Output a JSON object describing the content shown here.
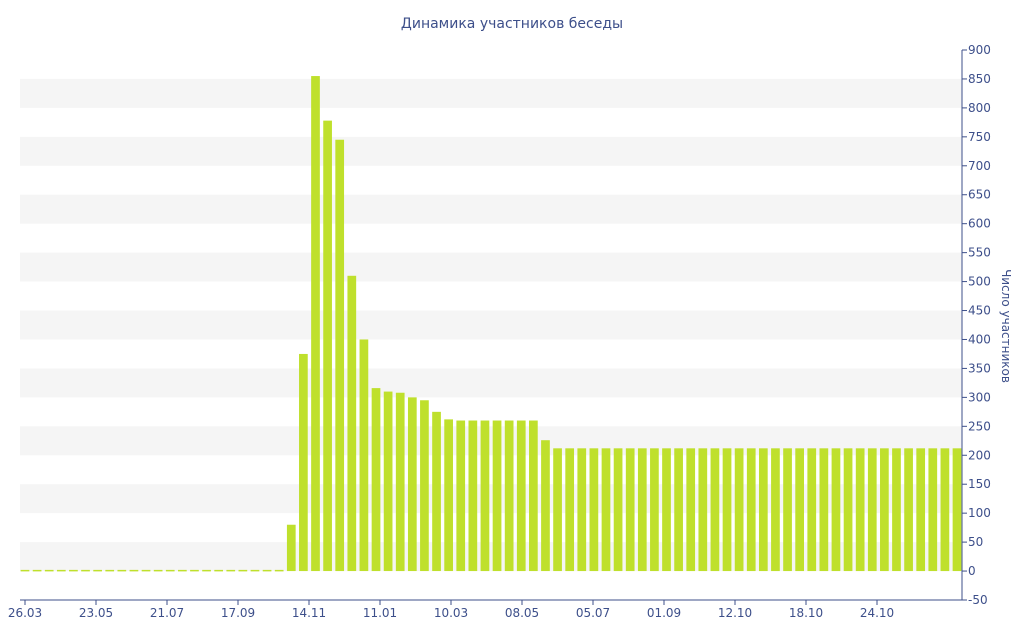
{
  "chart_data": {
    "type": "bar",
    "title": "Динамика участников беседы",
    "xlabel": "",
    "ylabel": "Число участников",
    "ylim": [
      -50,
      900
    ],
    "y_ticks": [
      -50,
      0,
      50,
      100,
      150,
      200,
      250,
      300,
      350,
      400,
      450,
      500,
      550,
      600,
      650,
      700,
      750,
      800,
      850,
      900
    ],
    "y_axis_position": "right",
    "grid": "alternating horizontal bands",
    "x_tick_labels": [
      "26.03",
      "23.05",
      "21.07",
      "17.09",
      "14.11",
      "11.01",
      "10.03",
      "08.05",
      "05.07",
      "01.09",
      "12.10",
      "18.10",
      "24.10"
    ],
    "bar_color": "#bfe02c",
    "values": [
      2,
      2,
      2,
      2,
      2,
      2,
      2,
      2,
      2,
      2,
      2,
      2,
      2,
      2,
      2,
      2,
      2,
      2,
      2,
      2,
      2,
      2,
      80,
      375,
      855,
      778,
      745,
      510,
      400,
      316,
      310,
      308,
      300,
      295,
      275,
      262,
      260,
      260,
      260,
      260,
      260,
      260,
      260,
      226,
      212,
      212,
      212,
      212,
      212,
      212,
      212,
      212,
      212,
      212,
      212,
      212,
      212,
      212,
      212,
      212,
      212,
      212,
      212,
      212,
      212,
      212,
      212,
      212,
      212,
      212,
      212,
      212,
      212,
      212,
      212,
      212,
      212,
      212
    ]
  }
}
